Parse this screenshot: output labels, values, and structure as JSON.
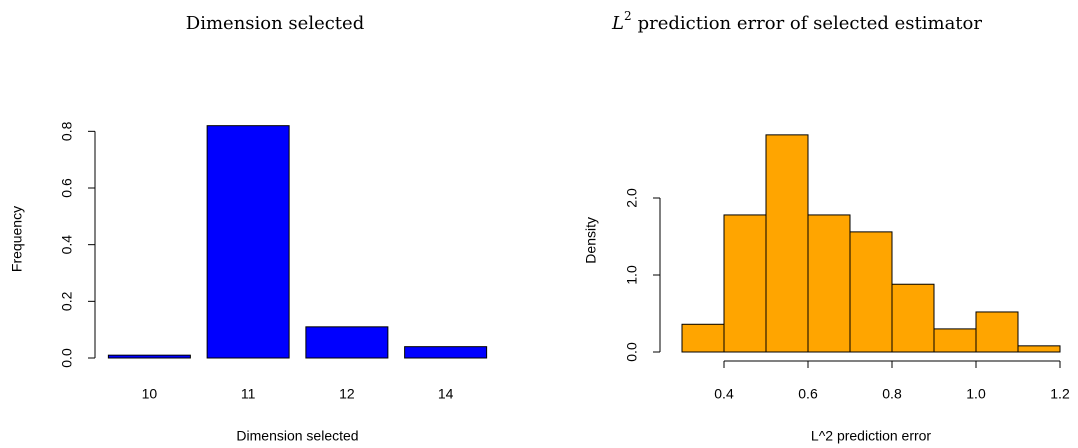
{
  "chart_data": [
    {
      "type": "bar",
      "title": "Dimension selected",
      "xlabel": "Dimension selected",
      "ylabel": "Frequency",
      "categories": [
        "10",
        "11",
        "12",
        "14"
      ],
      "values": [
        0.01,
        0.82,
        0.11,
        0.04
      ],
      "color": "#0000ff",
      "ylim": [
        0,
        0.84
      ],
      "yticks": [
        {
          "value": 0,
          "label": "0.0"
        },
        0.2,
        0.4,
        0.6,
        0.8
      ]
    },
    {
      "type": "histogram",
      "title_main": "L",
      "title_sup": "2",
      "title_rest": "prediction error of selected estimator",
      "xlabel": "L^2 prediction error",
      "ylabel": "Density",
      "bins": [
        0.3,
        0.4,
        0.5,
        0.6,
        0.7,
        0.8,
        0.9,
        1.0,
        1.1,
        1.2
      ],
      "values": [
        0.36,
        1.78,
        2.82,
        1.78,
        1.56,
        0.88,
        0.3,
        0.52,
        0.08
      ],
      "color": "#ffa500",
      "xlim": [
        0.3,
        1.2
      ],
      "ylim": [
        0,
        2.9
      ],
      "xticks": [
        0.4,
        0.6,
        0.8,
        {
          "value": 1.0,
          "label": "1.0"
        },
        1.2
      ],
      "yticks": [
        {
          "value": 0,
          "label": "0.0"
        },
        {
          "value": 1.0,
          "label": "1.0"
        },
        {
          "value": 2.0,
          "label": "2.0"
        }
      ]
    }
  ]
}
